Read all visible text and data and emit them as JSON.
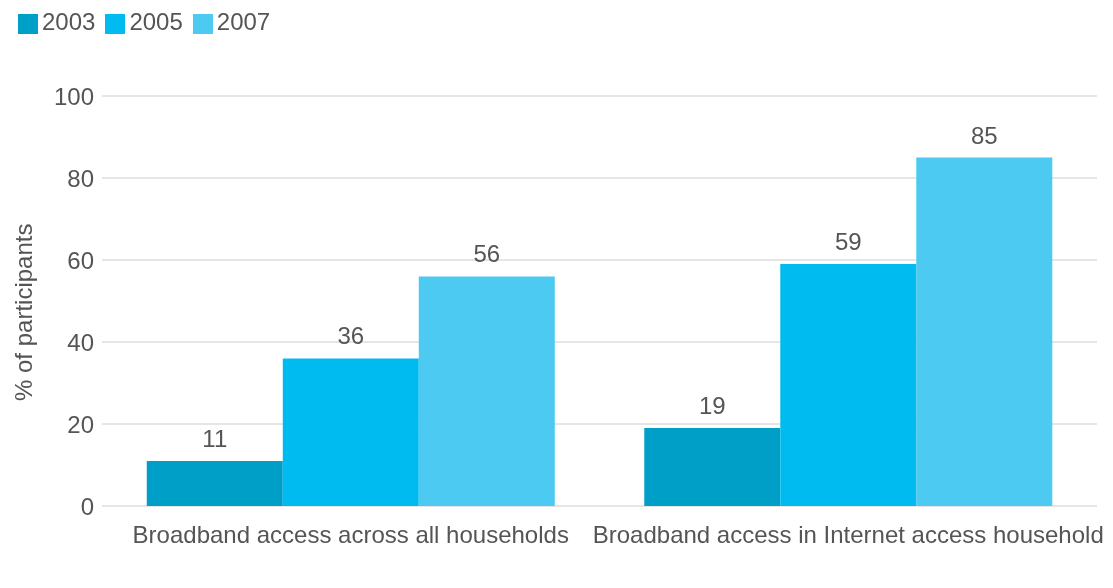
{
  "chart_data": {
    "type": "bar",
    "ylabel": "% of participants",
    "categories": [
      "Broadband access across all households",
      "Broadband access in Internet access household"
    ],
    "series": [
      {
        "name": "2003",
        "color": "#009fc8",
        "values": [
          11,
          19
        ]
      },
      {
        "name": "2005",
        "color": "#00bbef",
        "values": [
          36,
          59
        ]
      },
      {
        "name": "2007",
        "color": "#4ccaf1",
        "values": [
          56,
          85
        ]
      }
    ],
    "ylim": [
      0,
      100
    ],
    "yticks": [
      0,
      20,
      40,
      60,
      80,
      100
    ],
    "grid": "y",
    "legend": "top left",
    "data_labels": true
  }
}
